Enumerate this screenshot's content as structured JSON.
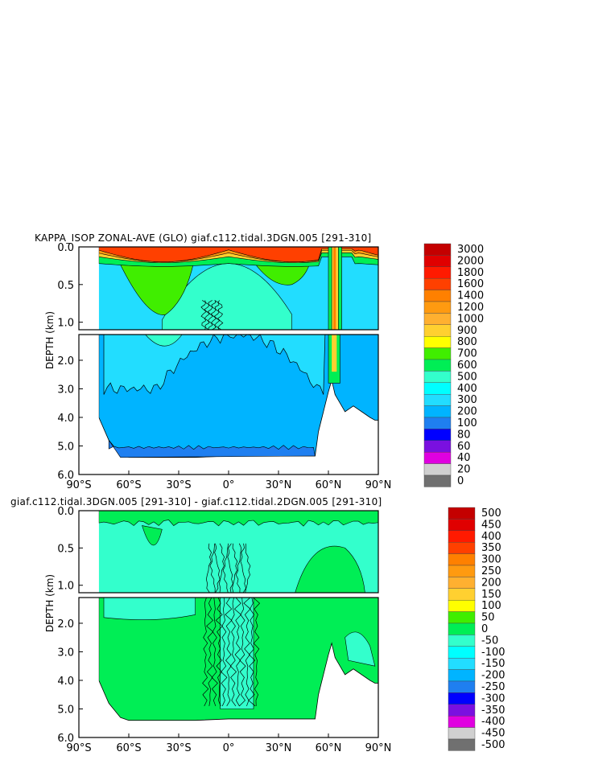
{
  "chart_data": [
    {
      "type": "heatmap",
      "title": "KAPPA_ISOP ZONAL-AVE (GLO) giaf.c112.tidal.3DGN.005 [291-310]",
      "ylabel": "DEPTH (km)",
      "xticks": [
        "90°S",
        "60°S",
        "30°S",
        "0°",
        "30°N",
        "60°N",
        "90°N"
      ],
      "xlim": [
        -90,
        90
      ],
      "yticks_upper": [
        "0.0",
        "0.5",
        "1.0"
      ],
      "yticks_lower": [
        "2.0",
        "3.0",
        "4.0",
        "5.0",
        "6.0"
      ],
      "ylim_upper": [
        0,
        1.1
      ],
      "ylim_lower": [
        1.1,
        6.0
      ],
      "colorbar": {
        "labels": [
          "3000",
          "2000",
          "1800",
          "1600",
          "1400",
          "1200",
          "1000",
          "900",
          "800",
          "700",
          "600",
          "500",
          "400",
          "300",
          "200",
          "100",
          "80",
          "60",
          "40",
          "20",
          "0"
        ],
        "colors": [
          "#c40000",
          "#e00000",
          "#ff1a00",
          "#ff4000",
          "#ff8000",
          "#ff9a10",
          "#ffb030",
          "#ffd030",
          "#ffff00",
          "#40ee00",
          "#00ee55",
          "#33ffcc",
          "#00ffff",
          "#22ddff",
          "#00b4ff",
          "#1f7ff0",
          "#0000ff",
          "#7a10e0",
          "#e000e0",
          "#d0d0d0",
          "#707070"
        ]
      }
    },
    {
      "type": "heatmap",
      "title": "giaf.c112.tidal.3DGN.005 [291-310] - giaf.c112.tidal.2DGN.005 [291-310]",
      "ylabel": "DEPTH (km)",
      "xticks": [
        "90°S",
        "60°S",
        "30°S",
        "0°",
        "30°N",
        "60°N",
        "90°N"
      ],
      "xlim": [
        -90,
        90
      ],
      "yticks_upper": [
        "0.0",
        "0.5",
        "1.0"
      ],
      "yticks_lower": [
        "2.0",
        "3.0",
        "4.0",
        "5.0",
        "6.0"
      ],
      "ylim_upper": [
        0,
        1.1
      ],
      "ylim_lower": [
        1.1,
        6.0
      ],
      "colorbar": {
        "labels": [
          "500",
          "450",
          "400",
          "350",
          "300",
          "250",
          "200",
          "150",
          "100",
          "50",
          "0",
          "-50",
          "-100",
          "-150",
          "-200",
          "-250",
          "-300",
          "-350",
          "-400",
          "-450",
          "-500"
        ],
        "colors": [
          "#c40000",
          "#e00000",
          "#ff1a00",
          "#ff4000",
          "#ff8000",
          "#ff9a10",
          "#ffb030",
          "#ffd030",
          "#ffff00",
          "#40ee00",
          "#00ee55",
          "#33ffcc",
          "#00ffff",
          "#22ddff",
          "#00b4ff",
          "#1f7ff0",
          "#0000ff",
          "#7a10e0",
          "#e000e0",
          "#d0d0d0",
          "#707070"
        ]
      }
    }
  ]
}
